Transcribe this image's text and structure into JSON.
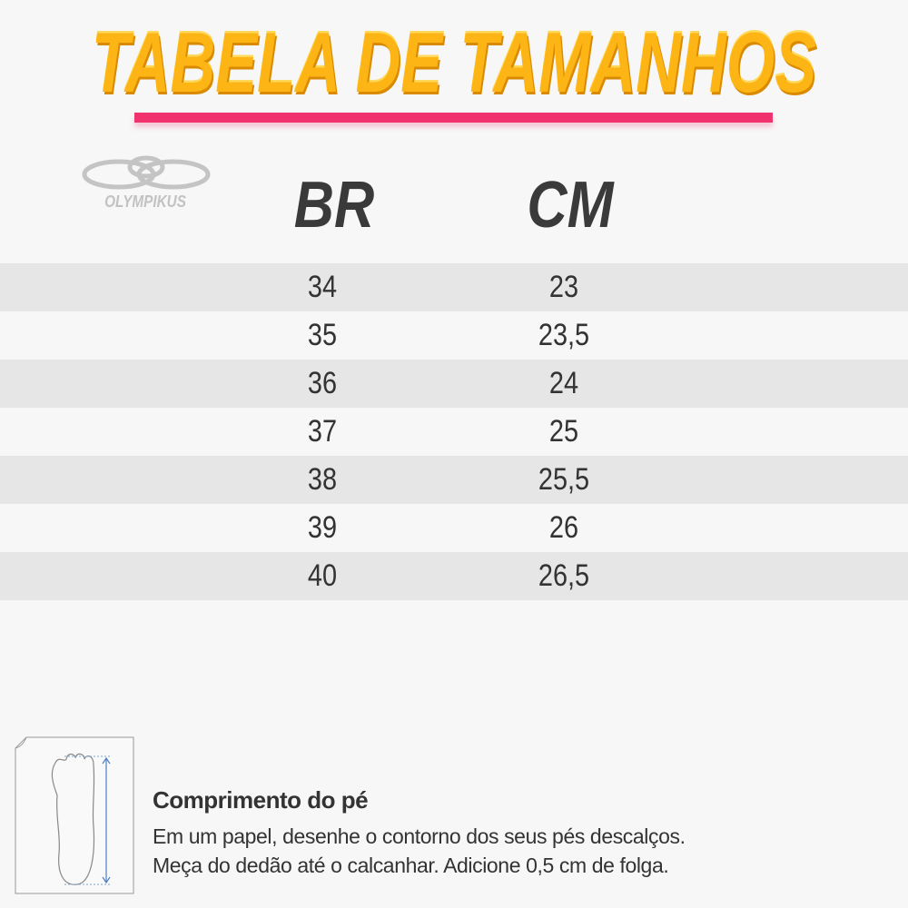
{
  "header": {
    "title": "TABELA DE TAMANHOS",
    "title_color": "#fdb515",
    "underline_color": "#f0336f"
  },
  "brand": {
    "logo_text": "OLYMPIKUS"
  },
  "table": {
    "columns": [
      "BR",
      "CM"
    ],
    "rows": [
      {
        "br": "34",
        "cm": "23"
      },
      {
        "br": "35",
        "cm": "23,5"
      },
      {
        "br": "36",
        "cm": "24"
      },
      {
        "br": "37",
        "cm": "25"
      },
      {
        "br": "38",
        "cm": "25,5"
      },
      {
        "br": "39",
        "cm": "26"
      },
      {
        "br": "40",
        "cm": "26,5"
      }
    ]
  },
  "footer": {
    "icon": "foot-measure-icon",
    "title": "Comprimento do pé",
    "line1": "Em um papel, desenhe o contorno dos seus pés descalços.",
    "line2": "Meça do dedão até o calcanhar. Adicione 0,5 cm de folga."
  }
}
